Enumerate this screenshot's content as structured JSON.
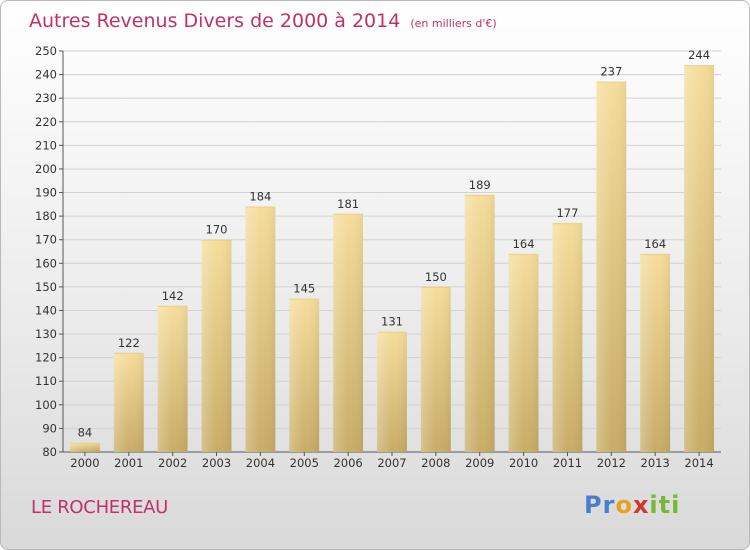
{
  "title": {
    "main": "Autres Revenus Divers de 2000 à 2014",
    "unit": "(en milliers d'€)"
  },
  "commune": "LE ROCHEREAU",
  "logo": {
    "text": "Proxiti",
    "letters": [
      "Pr",
      "o",
      "x",
      "iti"
    ]
  },
  "colors": {
    "title": "#c0306a",
    "bar_top": "#f5dc9a",
    "bar_bottom": "#c9ae68"
  },
  "chart_data": {
    "type": "bar",
    "categories": [
      "2000",
      "2001",
      "2002",
      "2003",
      "2004",
      "2005",
      "2006",
      "2007",
      "2008",
      "2009",
      "2010",
      "2011",
      "2012",
      "2013",
      "2014"
    ],
    "values": [
      84,
      122,
      142,
      170,
      184,
      145,
      181,
      131,
      150,
      189,
      164,
      177,
      237,
      164,
      244
    ],
    "ylim": [
      80,
      250
    ],
    "yticks": [
      80,
      90,
      100,
      110,
      120,
      130,
      140,
      150,
      160,
      170,
      180,
      190,
      200,
      210,
      220,
      230,
      240,
      250
    ],
    "grid": true
  }
}
